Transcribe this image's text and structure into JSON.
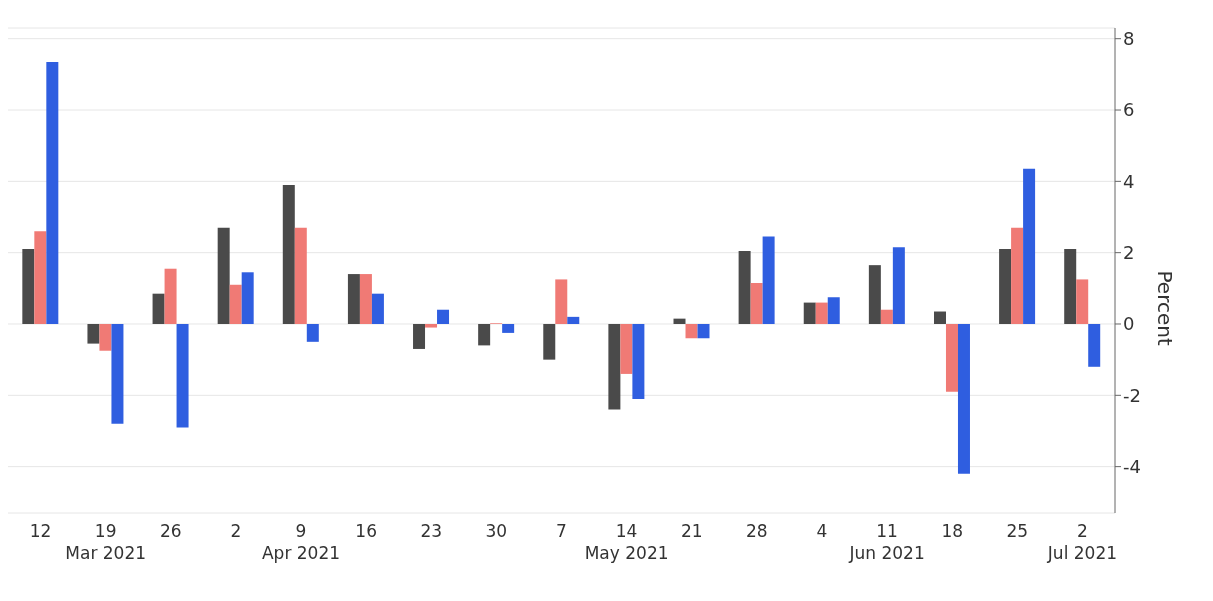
{
  "chart_data": {
    "type": "bar",
    "ylabel": "Percent",
    "categories": [
      "12",
      "19\nMar 2021",
      "26",
      "2",
      "9\nApr 2021",
      "16",
      "23",
      "30",
      "7",
      "14\nMay 2021",
      "21",
      "28",
      "4",
      "11\nJun 2021",
      "18",
      "25",
      "2\nJul 2021"
    ],
    "series": [
      {
        "color": "#4a4a4a",
        "values": [
          2.1,
          -0.55,
          0.85,
          2.7,
          3.9,
          1.4,
          -0.7,
          -0.6,
          -1.0,
          -2.4,
          0.15,
          2.05,
          0.6,
          1.65,
          0.35,
          2.1,
          2.1
        ]
      },
      {
        "color": "#f07a75",
        "values": [
          2.6,
          -0.75,
          1.55,
          1.1,
          2.7,
          1.4,
          -0.1,
          0.02,
          1.25,
          -1.4,
          -0.4,
          1.15,
          0.6,
          0.4,
          -1.9,
          2.7,
          1.25
        ]
      },
      {
        "color": "#2f5ee0",
        "values": [
          7.35,
          -2.8,
          -2.9,
          1.45,
          -0.5,
          0.85,
          0.4,
          -0.25,
          0.2,
          -2.1,
          -0.4,
          2.45,
          0.75,
          2.15,
          -4.2,
          4.35,
          -1.2
        ]
      }
    ],
    "ylim": [
      -5.3,
      8.3
    ],
    "yticks": [
      -4,
      -2,
      0,
      2,
      4,
      6,
      8
    ],
    "grid": "y",
    "legend": false
  }
}
